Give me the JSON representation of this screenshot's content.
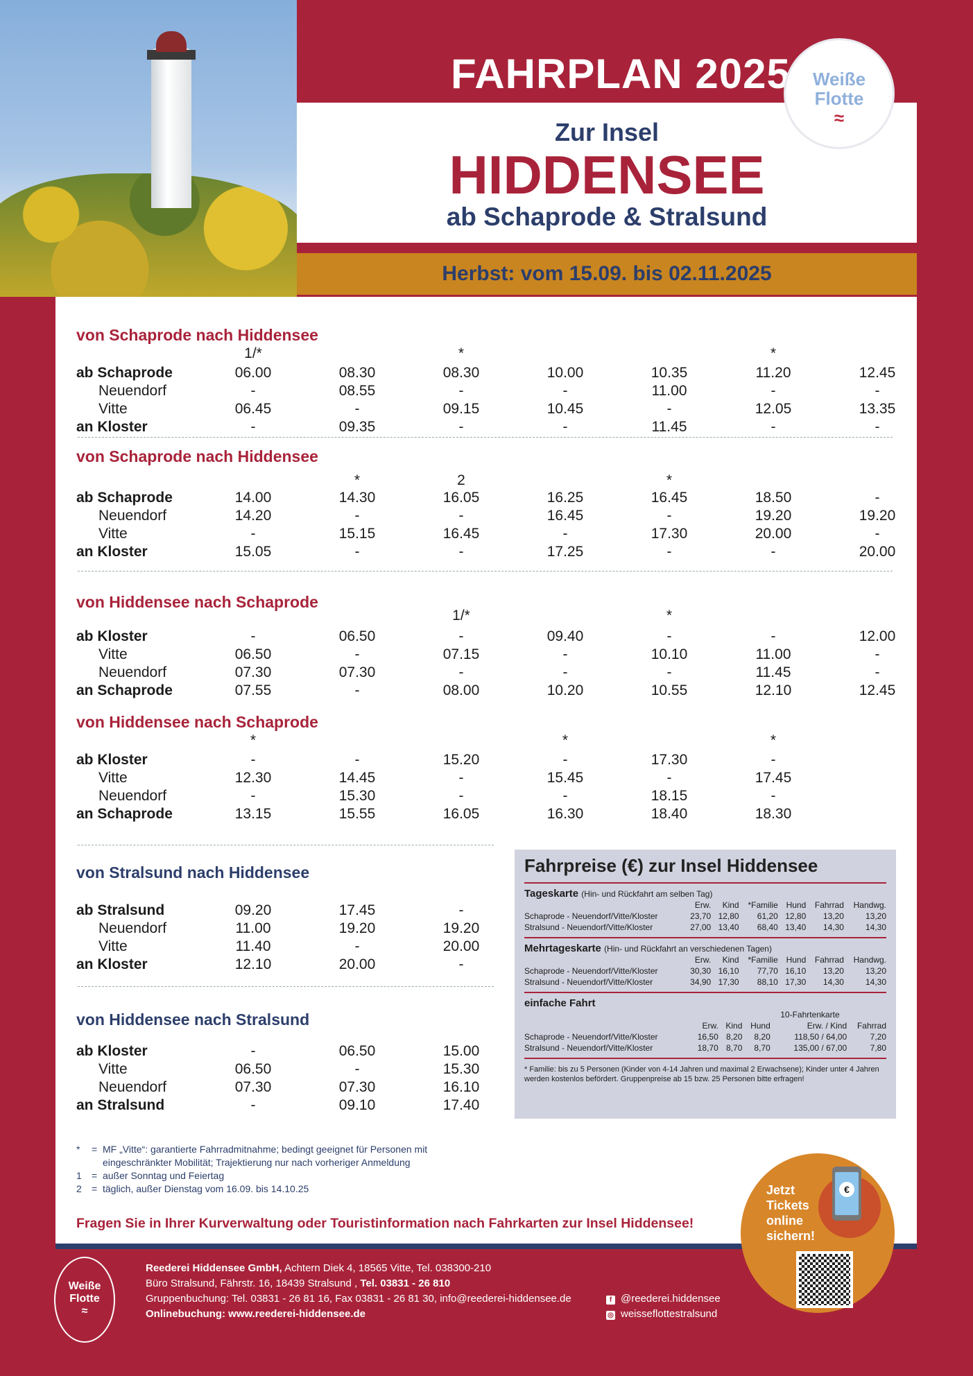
{
  "header": {
    "title": "FAHRPLAN 2025",
    "pre_title": "Zur Insel",
    "island": "HIDDENSEE",
    "route": "ab Schaprode & Stralsund",
    "season": "Herbst: vom 15.09. bis 02.11.2025",
    "logo_text": [
      "Weiße",
      "Flotte"
    ]
  },
  "colors": {
    "crimson": "#a8233a",
    "navy": "#2c3e6b",
    "orange": "#c9851f",
    "price_bg": "#d1d2df"
  },
  "timetables": [
    {
      "title": "von Schaprode nach Hiddensee",
      "notes": [
        "1/*",
        "",
        "*",
        "",
        "",
        "*",
        ""
      ],
      "rows": [
        {
          "stop": "ab Schaprode",
          "main": true,
          "times": [
            "06.00",
            "08.30",
            "08.30",
            "10.00",
            "10.35",
            "11.20",
            "12.45"
          ]
        },
        {
          "stop": "Neuendorf",
          "main": false,
          "times": [
            "-",
            "08.55",
            "-",
            "-",
            "11.00",
            "-",
            "-"
          ]
        },
        {
          "stop": "Vitte",
          "main": false,
          "times": [
            "06.45",
            "-",
            "09.15",
            "10.45",
            "-",
            "12.05",
            "13.35"
          ]
        },
        {
          "stop": "an Kloster",
          "main": true,
          "times": [
            "-",
            "09.35",
            "-",
            "-",
            "11.45",
            "-",
            "-"
          ]
        }
      ]
    },
    {
      "title": "von Schaprode nach Hiddensee",
      "notes": [
        "",
        "*",
        "2",
        "",
        "*",
        "",
        ""
      ],
      "rows": [
        {
          "stop": "ab Schaprode",
          "main": true,
          "times": [
            "14.00",
            "14.30",
            "16.05",
            "16.25",
            "16.45",
            "18.50",
            "-"
          ]
        },
        {
          "stop": "Neuendorf",
          "main": false,
          "times": [
            "14.20",
            "-",
            "-",
            "16.45",
            "-",
            "19.20",
            "19.20"
          ]
        },
        {
          "stop": "Vitte",
          "main": false,
          "times": [
            "-",
            "15.15",
            "16.45",
            "-",
            "17.30",
            "20.00",
            "-"
          ]
        },
        {
          "stop": "an Kloster",
          "main": true,
          "times": [
            "15.05",
            "-",
            "-",
            "17.25",
            "-",
            "-",
            "20.00"
          ]
        }
      ]
    },
    {
      "title": "von Hiddensee nach Schaprode",
      "notes": [
        "",
        "",
        "1/*",
        "",
        "*",
        "",
        ""
      ],
      "rows": [
        {
          "stop": "ab Kloster",
          "main": true,
          "times": [
            "-",
            "06.50",
            "-",
            "09.40",
            "-",
            "-",
            "12.00"
          ]
        },
        {
          "stop": "Vitte",
          "main": false,
          "times": [
            "06.50",
            "-",
            "07.15",
            "-",
            "10.10",
            "11.00",
            "-"
          ]
        },
        {
          "stop": "Neuendorf",
          "main": false,
          "times": [
            "07.30",
            "07.30",
            "-",
            "-",
            "-",
            "11.45",
            "-"
          ]
        },
        {
          "stop": "an Schaprode",
          "main": true,
          "times": [
            "07.55",
            "-",
            "08.00",
            "10.20",
            "10.55",
            "12.10",
            "12.45"
          ]
        }
      ]
    },
    {
      "title": "von Hiddensee nach Schaprode",
      "notes": [
        "*",
        "",
        "",
        "*",
        "",
        "*",
        ""
      ],
      "rows": [
        {
          "stop": "ab Kloster",
          "main": true,
          "times": [
            "-",
            "-",
            "15.20",
            "-",
            "17.30",
            "-",
            ""
          ]
        },
        {
          "stop": "Vitte",
          "main": false,
          "times": [
            "12.30",
            "14.45",
            "-",
            "15.45",
            "-",
            "17.45",
            ""
          ]
        },
        {
          "stop": "Neuendorf",
          "main": false,
          "times": [
            "-",
            "15.30",
            "-",
            "-",
            "18.15",
            "-",
            ""
          ]
        },
        {
          "stop": "an Schaprode",
          "main": true,
          "times": [
            "13.15",
            "15.55",
            "16.05",
            "16.30",
            "18.40",
            "18.30",
            ""
          ]
        }
      ]
    },
    {
      "title": "von Stralsund nach Hiddensee",
      "notes": [],
      "rows": [
        {
          "stop": "ab Stralsund",
          "main": true,
          "times": [
            "09.20",
            "17.45",
            "-"
          ]
        },
        {
          "stop": "Neuendorf",
          "main": false,
          "times": [
            "11.00",
            "19.20",
            "19.20"
          ]
        },
        {
          "stop": "Vitte",
          "main": false,
          "times": [
            "11.40",
            "-",
            "20.00"
          ]
        },
        {
          "stop": "an Kloster",
          "main": true,
          "times": [
            "12.10",
            "20.00",
            "-"
          ]
        }
      ]
    },
    {
      "title": "von Hiddensee nach Stralsund",
      "notes": [],
      "rows": [
        {
          "stop": "ab Kloster",
          "main": true,
          "times": [
            "-",
            "06.50",
            "15.00"
          ]
        },
        {
          "stop": "Vitte",
          "main": false,
          "times": [
            "06.50",
            "-",
            "15.30"
          ]
        },
        {
          "stop": "Neuendorf",
          "main": false,
          "times": [
            "07.30",
            "07.30",
            "16.10"
          ]
        },
        {
          "stop": "an Stralsund",
          "main": true,
          "times": [
            "-",
            "09.10",
            "17.40"
          ]
        }
      ]
    }
  ],
  "prices": {
    "title": "Fahrpreise (€) zur Insel Hiddensee",
    "sections": [
      {
        "name": "Tageskarte",
        "desc": "(Hin- und Rückfahrt am selben Tag)",
        "super": "",
        "headers": [
          "",
          "Erw.",
          "Kind",
          "*Familie",
          "Hund",
          "Fahrrad",
          "Handwg."
        ],
        "rows": [
          [
            "Schaprode - Neuendorf/Vitte/Kloster",
            "23,70",
            "12,80",
            "61,20",
            "12,80",
            "13,20",
            "13,20"
          ],
          [
            "Stralsund - Neuendorf/Vitte/Kloster",
            "27,00",
            "13,40",
            "68,40",
            "13,40",
            "14,30",
            "14,30"
          ]
        ]
      },
      {
        "name": "Mehrtageskarte",
        "desc": "(Hin- und Rückfahrt an verschiedenen Tagen)",
        "super": "",
        "headers": [
          "",
          "Erw.",
          "Kind",
          "*Familie",
          "Hund",
          "Fahrrad",
          "Handwg."
        ],
        "rows": [
          [
            "Schaprode - Neuendorf/Vitte/Kloster",
            "30,30",
            "16,10",
            "77,70",
            "16,10",
            "13,20",
            "13,20"
          ],
          [
            "Stralsund - Neuendorf/Vitte/Kloster",
            "34,90",
            "17,30",
            "88,10",
            "17,30",
            "14,30",
            "14,30"
          ]
        ]
      },
      {
        "name": "einfache Fahrt",
        "desc": "",
        "super": "10-Fahrtenkarte",
        "headers": [
          "",
          "Erw.",
          "Kind",
          "Hund",
          "Erw. / Kind",
          "Fahrrad"
        ],
        "rows": [
          [
            "Schaprode - Neuendorf/Vitte/Kloster",
            "16,50",
            "8,20",
            "8,20",
            "118,50 / 64,00",
            "7,20"
          ],
          [
            "Stralsund - Neuendorf/Vitte/Kloster",
            "18,70",
            "8,70",
            "8,70",
            "135,00 / 67,00",
            "7,80"
          ]
        ]
      }
    ],
    "note": "* Familie: bis zu 5 Personen (Kinder von 4-14 Jahren und maximal 2 Erwachsene); Kinder unter 4 Jahren werden kostenlos befördert. Gruppenpreise ab 15 bzw. 25 Personen bitte erfragen!"
  },
  "footnotes": [
    {
      "key": "*",
      "text": "MF „Vitte“: garantierte Fahrradmitnahme; bedingt geeignet für Personen mit eingeschränkter Mobilität; Trajektierung nur nach vorheriger Anmeldung"
    },
    {
      "key": "1",
      "text": "außer Sonntag und Feiertag"
    },
    {
      "key": "2",
      "text": "täglich, außer Dienstag vom 16.09. bis 14.10.25"
    }
  ],
  "callout": "Fragen Sie in Ihrer Kurverwaltung oder Touristinformation nach Fahrkarten zur Insel Hiddensee!",
  "promo": {
    "lines": [
      "Jetzt",
      "Tickets",
      "online",
      "sichern!"
    ],
    "icon": "euro-phone-icon"
  },
  "footer": {
    "company": "Reederei Hiddensee GmbH,",
    "address": " Achtern Diek 4, 18565 Vitte, Tel. 038300-210",
    "office": "Büro Stralsund, Fährstr. 16, 18439 Stralsund , ",
    "office_tel": "Tel. 03831 - 26 810",
    "group": "Gruppenbuchung: Tel. 03831 - 26 81 16, Fax 03831 - 26 81 30, info@reederei-hiddensee.de",
    "online": "Onlinebuchung: www.reederei-hiddensee.de",
    "facebook": "@reederei.hiddensee",
    "instagram": "weisseflottestralsund"
  }
}
